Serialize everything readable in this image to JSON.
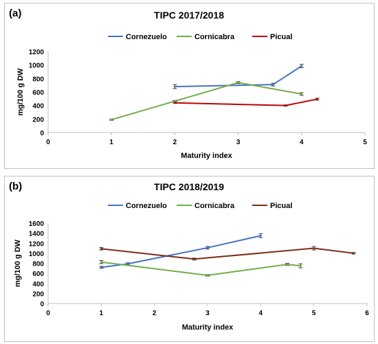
{
  "chart_data": [
    {
      "type": "line",
      "panel_label": "(a)",
      "title": "TIPC 2017/2018",
      "xlabel": "Maturity index",
      "ylabel": "mg/100 g DW",
      "xlim": [
        0,
        5
      ],
      "ylim": [
        0,
        1200
      ],
      "xticks": [
        0,
        1,
        2,
        3,
        4,
        5
      ],
      "yticks": [
        0,
        200,
        400,
        600,
        800,
        1000,
        1200
      ],
      "legend_position": "top",
      "grid": false,
      "series": [
        {
          "name": "Cornezuelo",
          "color": "#4472c4",
          "points": [
            [
              2.0,
              680
            ],
            [
              3.55,
              710
            ],
            [
              4.0,
              985
            ]
          ],
          "errors": [
            30,
            20,
            25
          ]
        },
        {
          "name": "Cornicabra",
          "color": "#70ad47",
          "points": [
            [
              1.0,
              190
            ],
            [
              2.0,
              465
            ],
            [
              3.0,
              740
            ],
            [
              4.0,
              570
            ]
          ],
          "errors": [
            10,
            10,
            15,
            20
          ]
        },
        {
          "name": "Picual",
          "color": "#c00000",
          "points": [
            [
              2.0,
              440
            ],
            [
              3.75,
              400
            ],
            [
              4.25,
              495
            ]
          ],
          "errors": [
            10,
            10,
            15
          ]
        }
      ]
    },
    {
      "type": "line",
      "panel_label": "(b)",
      "title": "TIPC 2018/2019",
      "xlabel": "Maturity index",
      "ylabel": "mg/100 g DW",
      "xlim": [
        0,
        6
      ],
      "ylim": [
        0,
        1600
      ],
      "xticks": [
        0,
        1,
        2,
        3,
        4,
        5,
        6
      ],
      "yticks": [
        0,
        200,
        400,
        600,
        800,
        1000,
        1200,
        1400,
        1600
      ],
      "legend_position": "top",
      "grid": false,
      "series": [
        {
          "name": "Cornezuelo",
          "color": "#4472c4",
          "points": [
            [
              1.0,
              720
            ],
            [
              1.5,
              790
            ],
            [
              3.0,
              1110
            ],
            [
              4.0,
              1350
            ]
          ],
          "errors": [
            20,
            20,
            25,
            40
          ]
        },
        {
          "name": "Cornicabra",
          "color": "#70ad47",
          "points": [
            [
              1.0,
              825
            ],
            [
              3.0,
              560
            ],
            [
              4.5,
              780
            ],
            [
              4.75,
              750
            ]
          ],
          "errors": [
            30,
            15,
            20,
            40
          ]
        },
        {
          "name": "Picual",
          "color": "#7b2c1a",
          "points": [
            [
              1.0,
              1090
            ],
            [
              2.75,
              885
            ],
            [
              5.0,
              1100
            ],
            [
              5.75,
              1000
            ]
          ],
          "errors": [
            25,
            20,
            35,
            15
          ]
        }
      ]
    }
  ]
}
